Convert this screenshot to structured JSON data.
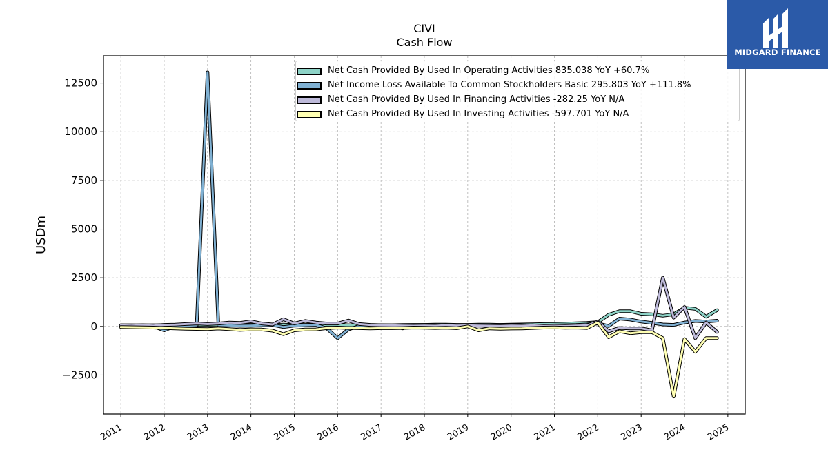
{
  "header": {
    "title": "CIVI",
    "subtitle": "Cash Flow"
  },
  "logo": {
    "text": "MIDGARD FINANCE",
    "background": "#2b5aa8",
    "icon": "midgard-logo-icon"
  },
  "chart_data": {
    "type": "line",
    "ylabel": "USDm",
    "xlabel": "",
    "xlim": [
      2010.6,
      2025.4
    ],
    "ylim": [
      -4500,
      13900
    ],
    "yticks": [
      -2500,
      0,
      2500,
      5000,
      7500,
      10000,
      12500
    ],
    "ytick_labels": [
      "−2500",
      "0",
      "2500",
      "5000",
      "7500",
      "10000",
      "12500"
    ],
    "xticks": [
      2011,
      2012,
      2013,
      2014,
      2015,
      2016,
      2017,
      2018,
      2019,
      2020,
      2021,
      2022,
      2023,
      2024,
      2025
    ],
    "xtick_labels": [
      "2011",
      "2012",
      "2013",
      "2014",
      "2015",
      "2016",
      "2017",
      "2018",
      "2019",
      "2020",
      "2021",
      "2022",
      "2023",
      "2024",
      "2025"
    ],
    "grid": true,
    "legend_position": "top-right",
    "series": [
      {
        "name": "Net Cash Provided By Used In Operating Activities",
        "legend": "Net Cash Provided By Used In Operating Activities  835.038 YoY +60.7%",
        "color": "#8dd3c7",
        "x": [
          2011.0,
          2011.25,
          2011.5,
          2011.75,
          2012.0,
          2012.25,
          2012.5,
          2012.75,
          2013.0,
          2013.25,
          2013.5,
          2013.75,
          2014.0,
          2014.25,
          2014.5,
          2014.75,
          2015.0,
          2015.25,
          2015.5,
          2015.75,
          2016.0,
          2016.25,
          2016.5,
          2016.75,
          2017.0,
          2017.25,
          2017.5,
          2017.75,
          2018.0,
          2018.25,
          2018.5,
          2018.75,
          2019.0,
          2019.25,
          2019.5,
          2019.75,
          2020.0,
          2020.25,
          2020.5,
          2020.75,
          2021.0,
          2021.25,
          2021.5,
          2021.75,
          2022.0,
          2022.25,
          2022.5,
          2022.75,
          2023.0,
          2023.25,
          2023.5,
          2023.75,
          2024.0,
          2024.25,
          2024.5,
          2024.75
        ],
        "values": [
          60,
          60,
          55,
          60,
          55,
          60,
          65,
          70,
          70,
          70,
          65,
          70,
          80,
          70,
          80,
          90,
          70,
          80,
          85,
          80,
          70,
          60,
          60,
          60,
          60,
          60,
          70,
          80,
          80,
          90,
          90,
          80,
          80,
          90,
          90,
          80,
          90,
          100,
          110,
          120,
          130,
          140,
          160,
          180,
          220,
          600,
          780,
          780,
          650,
          620,
          550,
          620,
          960,
          900,
          500,
          835
        ]
      },
      {
        "name": "Net Income Loss Available To Common Stockholders Basic",
        "legend": "Net Income Loss Available To Common Stockholders Basic  295.803 YoY +111.8%",
        "color": "#80b1d3",
        "x": [
          2011.0,
          2011.25,
          2011.5,
          2011.75,
          2012.0,
          2012.25,
          2012.5,
          2012.75,
          2013.0,
          2013.25,
          2013.5,
          2013.75,
          2014.0,
          2014.25,
          2014.5,
          2014.75,
          2015.0,
          2015.25,
          2015.5,
          2015.75,
          2016.0,
          2016.25,
          2016.5,
          2016.75,
          2017.0,
          2017.25,
          2017.5,
          2017.75,
          2018.0,
          2018.25,
          2018.5,
          2018.75,
          2019.0,
          2019.25,
          2019.5,
          2019.75,
          2020.0,
          2020.25,
          2020.5,
          2020.75,
          2021.0,
          2021.25,
          2021.5,
          2021.75,
          2022.0,
          2022.25,
          2022.5,
          2022.75,
          2023.0,
          2023.25,
          2023.5,
          2023.75,
          2024.0,
          2024.25,
          2024.5,
          2024.75
        ],
        "values": [
          20,
          30,
          10,
          0,
          -200,
          20,
          40,
          60,
          13050,
          70,
          50,
          30,
          40,
          60,
          70,
          -30,
          40,
          60,
          80,
          -100,
          -600,
          -150,
          20,
          40,
          50,
          40,
          -100,
          60,
          70,
          60,
          50,
          30,
          40,
          60,
          50,
          70,
          80,
          60,
          50,
          40,
          50,
          60,
          70,
          100,
          150,
          20,
          400,
          350,
          250,
          180,
          100,
          80,
          200,
          280,
          250,
          296
        ]
      },
      {
        "name": "Net Cash Provided By Used In Financing Activities",
        "legend": "Net Cash Provided By Used In Financing Activities  -282.25 YoY N/A",
        "color": "#bebada",
        "x": [
          2011.0,
          2011.25,
          2011.5,
          2011.75,
          2012.0,
          2012.25,
          2012.5,
          2012.75,
          2013.0,
          2013.25,
          2013.5,
          2013.75,
          2014.0,
          2014.25,
          2014.5,
          2014.75,
          2015.0,
          2015.25,
          2015.5,
          2015.75,
          2016.0,
          2016.25,
          2016.5,
          2016.75,
          2017.0,
          2017.25,
          2017.5,
          2017.75,
          2018.0,
          2018.25,
          2018.5,
          2018.75,
          2019.0,
          2019.25,
          2019.5,
          2019.75,
          2020.0,
          2020.25,
          2020.5,
          2020.75,
          2021.0,
          2021.25,
          2021.5,
          2021.75,
          2022.0,
          2022.25,
          2022.5,
          2022.75,
          2023.0,
          2023.25,
          2023.5,
          2023.75,
          2024.0,
          2024.25,
          2024.5,
          2024.75
        ],
        "values": [
          50,
          40,
          60,
          40,
          80,
          90,
          120,
          150,
          120,
          150,
          200,
          180,
          260,
          150,
          100,
          370,
          150,
          280,
          200,
          150,
          150,
          300,
          120,
          80,
          60,
          50,
          40,
          30,
          40,
          30,
          60,
          40,
          50,
          40,
          30,
          20,
          40,
          30,
          50,
          20,
          30,
          20,
          40,
          50,
          250,
          -250,
          -80,
          -100,
          -100,
          -200,
          2500,
          450,
          1000,
          -600,
          200,
          -282
        ]
      },
      {
        "name": "Net Cash Provided By Used In Investing Activities",
        "legend": "Net Cash Provided By Used In Investing Activities  -597.701 YoY N/A",
        "color": "#ffffb3",
        "x": [
          2011.0,
          2011.25,
          2011.5,
          2011.75,
          2012.0,
          2012.25,
          2012.5,
          2012.75,
          2013.0,
          2013.25,
          2013.5,
          2013.75,
          2014.0,
          2014.25,
          2014.5,
          2014.75,
          2015.0,
          2015.25,
          2015.5,
          2015.75,
          2016.0,
          2016.25,
          2016.5,
          2016.75,
          2017.0,
          2017.25,
          2017.5,
          2017.75,
          2018.0,
          2018.25,
          2018.5,
          2018.75,
          2019.0,
          2019.25,
          2019.5,
          2019.75,
          2020.0,
          2020.25,
          2020.5,
          2020.75,
          2021.0,
          2021.25,
          2021.5,
          2021.75,
          2022.0,
          2022.25,
          2022.5,
          2022.75,
          2023.0,
          2023.25,
          2023.5,
          2023.75,
          2024.0,
          2024.25,
          2024.5,
          2024.75
        ],
        "values": [
          -30,
          -40,
          -50,
          -60,
          -80,
          -100,
          -120,
          -130,
          -140,
          -110,
          -140,
          -180,
          -150,
          -160,
          -220,
          -400,
          -200,
          -160,
          -150,
          -90,
          -60,
          -80,
          -90,
          -100,
          -90,
          -90,
          -80,
          -60,
          -70,
          -80,
          -70,
          -90,
          0,
          -200,
          -100,
          -120,
          -110,
          -100,
          -80,
          -60,
          -50,
          -70,
          -60,
          -80,
          200,
          -550,
          -250,
          -350,
          -300,
          -300,
          -600,
          -3600,
          -650,
          -1300,
          -600,
          -598
        ]
      }
    ]
  }
}
